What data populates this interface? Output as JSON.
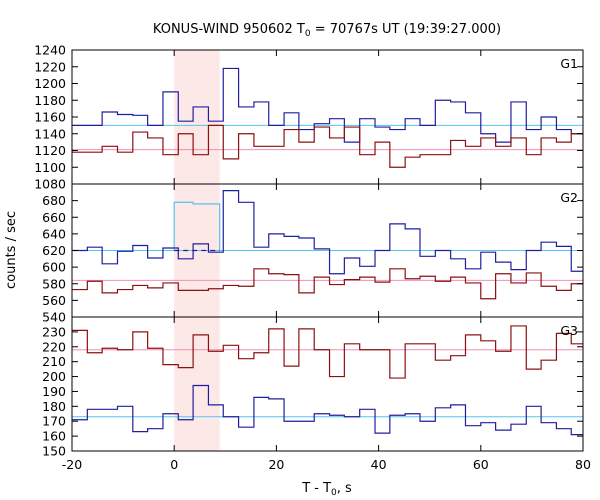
{
  "chart_data": {
    "type": "line",
    "title": {
      "main": "KONUS-WIND 950602 T",
      "sub": "0",
      "rest": " = 70767s UT (19:39:27.000)"
    },
    "xlabel": {
      "main": "T - T",
      "sub": "0",
      "rest": ", s"
    },
    "ylabel": "counts / sec",
    "xlim": [
      -20,
      80
    ],
    "xticks": [
      -20,
      0,
      20,
      40,
      60,
      80
    ],
    "highlight_interval": [
      0,
      8.9
    ],
    "bin_edges": [
      -20,
      -17,
      -14.1,
      -11.1,
      -8.1,
      -5.2,
      -2.2,
      0.8,
      3.7,
      6.7,
      9.6,
      12.6,
      15.6,
      18.5,
      21.5,
      24.4,
      27.4,
      30.4,
      33.3,
      36.3,
      39.3,
      42.2,
      45.2,
      48.1,
      51.1,
      54.1,
      57,
      60,
      62.9,
      65.9,
      68.9,
      71.8,
      74.8,
      77.7,
      80
    ],
    "colors": {
      "blue_series": "#1f1f9e",
      "red_series": "#8b1010",
      "blue_level": "#55c5ef",
      "red_level": "#f08fb8",
      "highlight": "#fde8e8",
      "source_level": "#67c6f0"
    },
    "panels": [
      {
        "name": "G1",
        "ylim": [
          1080,
          1240
        ],
        "yticks": [
          1080,
          1100,
          1120,
          1140,
          1160,
          1180,
          1200,
          1220,
          1240
        ],
        "series": [
          {
            "values": [
              1150,
              1150,
              1166,
              1163,
              1162,
              1150,
              1190,
              1155,
              1172,
              1155,
              1218,
              1172,
              1178,
              1150,
              1165,
              1145,
              1152,
              1158,
              1130,
              1158,
              1148,
              1145,
              1158,
              1150,
              1180,
              1178,
              1165,
              1140,
              1130,
              1178,
              1145,
              1160,
              1145,
              1140
            ]
          },
          {
            "values": [
              1118,
              1118,
              1125,
              1118,
              1142,
              1135,
              1115,
              1140,
              1115,
              1150,
              1110,
              1140,
              1125,
              1125,
              1145,
              1130,
              1148,
              1135,
              1148,
              1115,
              1130,
              1100,
              1112,
              1115,
              1115,
              1132,
              1125,
              1135,
              1125,
              1135,
              1115,
              1135,
              1130,
              1140
            ]
          }
        ],
        "levels": [
          1150,
          1121
        ]
      },
      {
        "name": "G2",
        "ylim": [
          540,
          700
        ],
        "yticks": [
          540,
          560,
          580,
          600,
          620,
          640,
          660,
          680,
          700
        ],
        "series": [
          {
            "values": [
              620,
              624,
              604,
              619,
              626,
              611,
              623,
              610,
              628,
              618,
              692,
              678,
              624,
              640,
              637,
              635,
              622,
              592,
              611,
              601,
              620,
              652,
              646,
              613,
              620,
              610,
              598,
              618,
              606,
              597,
              620,
              630,
              625,
              595
            ]
          },
          {
            "values": [
              573,
              583,
              569,
              573,
              578,
              575,
              581,
              572,
              572,
              574,
              578,
              577,
              598,
              592,
              591,
              569,
              588,
              579,
              585,
              588,
              582,
              598,
              586,
              589,
              583,
              588,
              581,
              562,
              592,
              581,
              593,
              577,
              572,
              580
            ]
          }
        ],
        "levels": [
          620,
          584
        ],
        "source_level": {
          "interval": [
            0,
            8.9
          ],
          "steps": [
            [
              0,
              3.7,
              678
            ],
            [
              3.7,
              8.9,
              676
            ]
          ]
        }
      },
      {
        "name": "G3",
        "ylim": [
          150,
          240
        ],
        "yticks": [
          150,
          160,
          170,
          180,
          190,
          200,
          210,
          220,
          230,
          240
        ],
        "series": [
          {
            "values": [
              171,
              178,
              178,
              180,
              163,
              165,
              175,
              171,
              194,
              181,
              173,
              166,
              186,
              185,
              170,
              170,
              175,
              174,
              173,
              178,
              162,
              174,
              175,
              170,
              179,
              181,
              167,
              169,
              164,
              168,
              180,
              169,
              165,
              161
            ]
          },
          {
            "values": [
              231,
              216,
              219,
              218,
              230,
              219,
              208,
              206,
              228,
              217,
              221,
              212,
              216,
              232,
              207,
              232,
              218,
              200,
              222,
              218,
              218,
              199,
              222,
              222,
              211,
              214,
              228,
              224,
              217,
              234,
              205,
              211,
              229,
              222
            ]
          }
        ],
        "levels": [
          173,
          218
        ]
      }
    ]
  }
}
